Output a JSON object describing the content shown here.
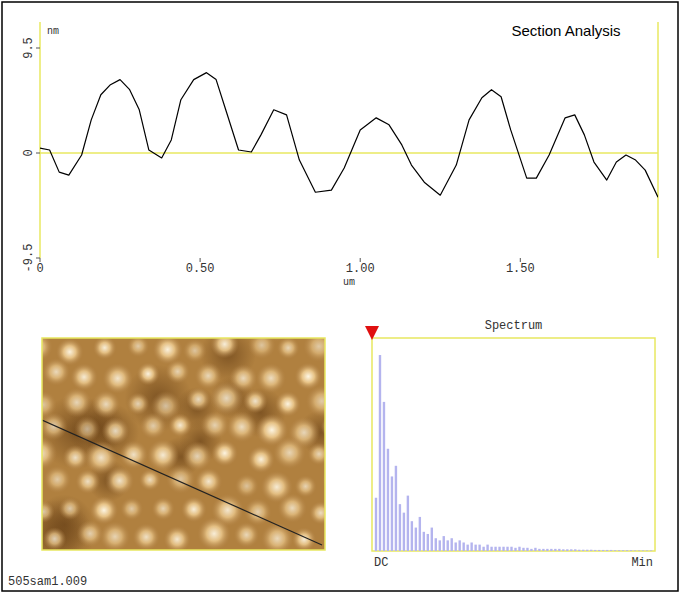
{
  "header": {
    "title": "Section Analysis"
  },
  "chart_data": [
    {
      "type": "line",
      "x_label": "um",
      "y_label": "nm",
      "color": "#000000",
      "x": [
        0,
        0.03,
        0.06,
        0.09,
        0.13,
        0.16,
        0.19,
        0.22,
        0.25,
        0.28,
        0.31,
        0.34,
        0.38,
        0.41,
        0.44,
        0.48,
        0.52,
        0.55,
        0.58,
        0.62,
        0.66,
        0.69,
        0.73,
        0.77,
        0.81,
        0.86,
        0.91,
        0.95,
        1.0,
        1.05,
        1.09,
        1.13,
        1.16,
        1.2,
        1.25,
        1.3,
        1.34,
        1.38,
        1.41,
        1.44,
        1.47,
        1.52,
        1.55,
        1.59,
        1.64,
        1.67,
        1.7,
        1.73,
        1.77,
        1.8,
        1.83,
        1.86,
        1.89,
        1.93
      ],
      "values": [
        0.45,
        0.27,
        -1.73,
        -2.0,
        -0.18,
        3.0,
        5.27,
        6.18,
        6.64,
        5.73,
        3.91,
        0.27,
        -0.45,
        1.18,
        4.82,
        6.64,
        7.27,
        6.64,
        3.91,
        0.27,
        0.09,
        1.64,
        3.91,
        3.45,
        -0.64,
        -3.55,
        -3.36,
        -1.36,
        2.09,
        3.18,
        2.55,
        0.73,
        -1.09,
        -2.64,
        -3.82,
        -1.09,
        3.0,
        5.0,
        5.73,
        5.09,
        2.09,
        -2.27,
        -2.27,
        -0.18,
        3.18,
        3.45,
        1.64,
        -0.82,
        -2.45,
        -0.82,
        -0.18,
        -0.64,
        -1.55,
        -4.0
      ],
      "xlim": [
        0,
        1.93
      ],
      "ylim": [
        -9.5,
        9.5
      ],
      "xticks": [
        0,
        {
          "value": 0.5,
          "label": "0.50"
        },
        {
          "value": 1,
          "label": "1.00"
        },
        {
          "value": 1.5,
          "label": "1.50"
        }
      ],
      "yticks": [
        -9.5,
        0,
        9.5
      ]
    },
    {
      "type": "bar",
      "title": "Spectrum",
      "color": "#b4b4ee",
      "ylim": [
        0,
        100
      ],
      "tick_labels": "x",
      "categories": [
        "DC",
        null,
        null,
        null,
        null,
        null,
        null,
        null,
        null,
        null,
        null,
        null,
        null,
        null,
        null,
        null,
        null,
        null,
        null,
        null,
        null,
        null,
        null,
        null,
        null,
        null,
        null,
        null,
        null,
        null,
        null,
        null,
        null,
        null,
        null,
        null,
        null,
        null,
        null,
        null,
        null,
        null,
        null,
        null,
        null,
        null,
        null,
        null,
        null,
        null,
        null,
        null,
        null,
        null,
        null,
        null,
        null,
        null,
        null,
        null,
        null,
        null,
        null,
        null,
        null,
        null,
        null,
        null,
        null,
        "Min"
      ],
      "values": [
        25,
        92,
        70,
        48,
        35,
        40,
        22,
        18,
        26,
        14,
        11,
        16,
        9,
        8,
        11,
        6,
        5,
        7,
        5,
        6,
        4,
        5,
        4,
        3,
        4,
        3,
        3,
        2,
        3,
        2,
        2,
        2,
        2,
        2,
        2,
        1.5,
        2,
        1.5,
        1.5,
        1,
        1.5,
        1,
        1,
        1,
        1,
        1,
        1,
        0.8,
        0.8,
        0.8,
        0.8,
        0.6,
        0.6,
        0.6,
        0.6,
        0.5,
        0.5,
        0.5,
        0.5,
        0.5,
        0.4,
        0.4,
        0.4,
        0.4,
        0.4,
        0.3,
        0.3,
        0.3,
        0.3,
        0.3
      ]
    }
  ],
  "footer": {
    "file": "505sam1.009"
  }
}
